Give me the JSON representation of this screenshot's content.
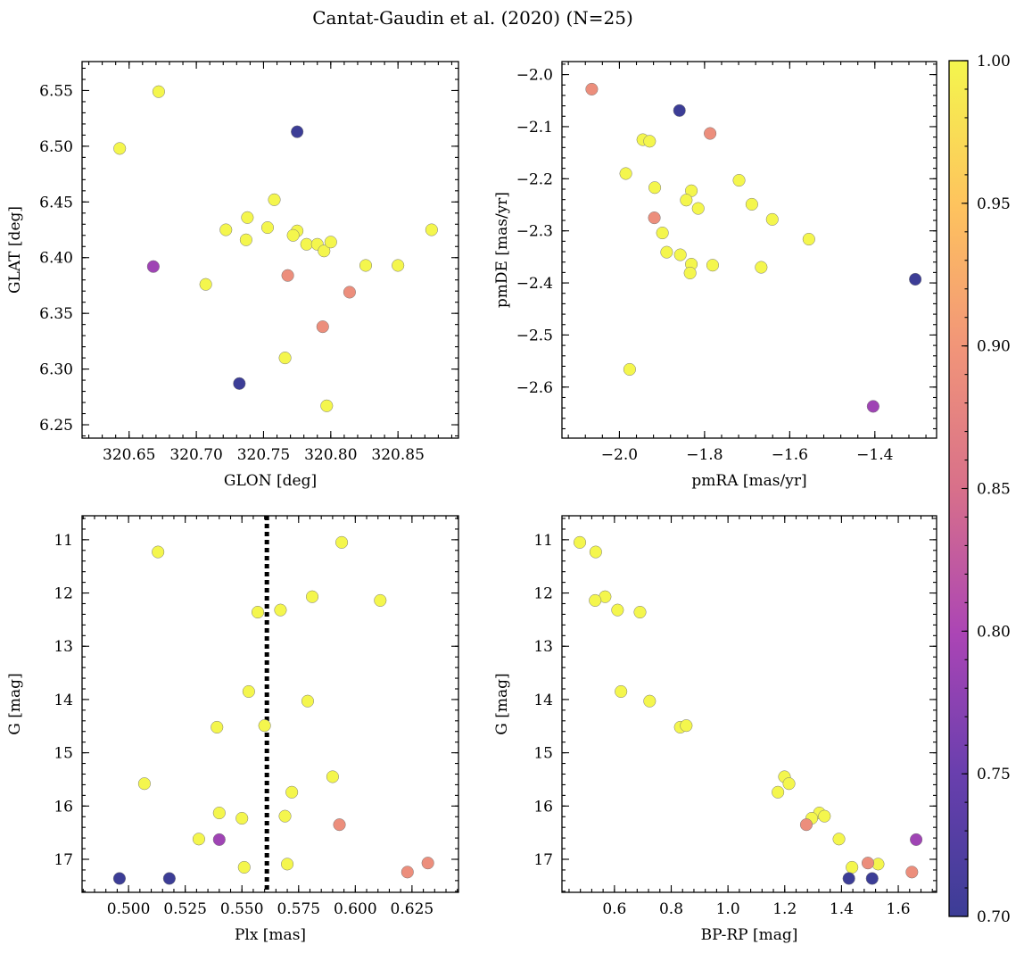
{
  "title": "Cantat-Gaudin et al. (2020) (N=25)",
  "colorbar": {
    "min": 0.7,
    "max": 1.0,
    "ticks": [
      0.7,
      0.75,
      0.8,
      0.85,
      0.9,
      0.95,
      1.0
    ],
    "tick_labels": [
      "0.70",
      "0.75",
      "0.80",
      "0.85",
      "0.90",
      "0.95",
      "1.00"
    ],
    "colormap": "plasma"
  },
  "chart_data": [
    {
      "type": "scatter",
      "name": "glon-glat",
      "xlabel": "GLON [deg]",
      "ylabel": "GLAT [deg]",
      "xlim": [
        320.615,
        320.895
      ],
      "ylim": [
        6.238,
        6.576
      ],
      "xticks": [
        320.65,
        320.7,
        320.75,
        320.8,
        320.85
      ],
      "xtick_labels": [
        "320.65",
        "320.70",
        "320.75",
        "320.80",
        "320.85"
      ],
      "yticks": [
        6.25,
        6.3,
        6.35,
        6.4,
        6.45,
        6.5,
        6.55
      ],
      "ytick_labels": [
        "6.25",
        "6.30",
        "6.35",
        "6.40",
        "6.45",
        "6.50",
        "6.55"
      ],
      "x": [
        320.672,
        320.643,
        320.775,
        320.758,
        320.738,
        320.722,
        320.753,
        320.737,
        320.775,
        320.772,
        320.782,
        320.79,
        320.795,
        320.8,
        320.826,
        320.85,
        320.875,
        320.668,
        320.707,
        320.768,
        320.814,
        320.794,
        320.732,
        320.766,
        320.797
      ],
      "y": [
        6.549,
        6.498,
        6.513,
        6.452,
        6.436,
        6.425,
        6.427,
        6.416,
        6.424,
        6.42,
        6.412,
        6.412,
        6.406,
        6.414,
        6.393,
        6.393,
        6.425,
        6.392,
        6.376,
        6.384,
        6.369,
        6.338,
        6.287,
        6.31,
        6.267
      ],
      "values": [
        1.0,
        1.0,
        0.7,
        1.0,
        1.0,
        1.0,
        1.0,
        1.0,
        1.0,
        1.0,
        1.0,
        1.0,
        1.0,
        1.0,
        1.0,
        1.0,
        1.0,
        0.79,
        1.0,
        0.89,
        0.89,
        0.89,
        0.7,
        1.0,
        1.0
      ]
    },
    {
      "type": "scatter",
      "name": "pmra-pmde",
      "xlabel": "pmRA [mas/yr]",
      "ylabel": "pmDE [mas/yr]",
      "xlim": [
        -2.135,
        -1.255
      ],
      "ylim": [
        -2.698,
        -1.975
      ],
      "xticks": [
        -2.0,
        -1.8,
        -1.6,
        -1.4
      ],
      "xtick_labels": [
        "−2.0",
        "−1.8",
        "−1.6",
        "−1.4"
      ],
      "yticks": [
        -2.6,
        -2.5,
        -2.4,
        -2.3,
        -2.2,
        -2.1,
        -2.0
      ],
      "ytick_labels": [
        "−2.6",
        "−2.5",
        "−2.4",
        "−2.3",
        "−2.2",
        "−2.1",
        "−2.0"
      ],
      "x": [
        -2.065,
        -1.859,
        -1.787,
        -1.945,
        -1.929,
        -1.985,
        -1.917,
        -1.719,
        -1.831,
        -1.843,
        -1.815,
        -1.689,
        -1.641,
        -1.918,
        -1.899,
        -1.555,
        -1.889,
        -1.857,
        -1.831,
        -1.834,
        -1.781,
        -1.667,
        -1.305,
        -1.976,
        -1.404
      ],
      "y": [
        -2.028,
        -2.069,
        -2.113,
        -2.125,
        -2.128,
        -2.19,
        -2.217,
        -2.203,
        -2.223,
        -2.241,
        -2.257,
        -2.249,
        -2.278,
        -2.275,
        -2.304,
        -2.316,
        -2.341,
        -2.346,
        -2.364,
        -2.381,
        -2.366,
        -2.37,
        -2.393,
        -2.566,
        -2.637
      ],
      "values": [
        0.89,
        0.7,
        0.89,
        1.0,
        1.0,
        1.0,
        1.0,
        1.0,
        1.0,
        1.0,
        1.0,
        1.0,
        1.0,
        0.89,
        1.0,
        1.0,
        1.0,
        1.0,
        1.0,
        1.0,
        1.0,
        1.0,
        0.7,
        1.0,
        0.79
      ]
    },
    {
      "type": "scatter",
      "name": "plx-g",
      "xlabel": "Plx [mas]",
      "ylabel": "G [mag]",
      "xlim": [
        0.4795,
        0.6455
      ],
      "ylim": [
        17.62,
        10.55
      ],
      "y_inverted": true,
      "vline": 0.561,
      "xticks": [
        0.5,
        0.525,
        0.55,
        0.575,
        0.6,
        0.625
      ],
      "xtick_labels": [
        "0.500",
        "0.525",
        "0.550",
        "0.575",
        "0.600",
        "0.625"
      ],
      "yticks": [
        11,
        12,
        13,
        14,
        15,
        16,
        17
      ],
      "ytick_labels": [
        "11",
        "12",
        "13",
        "14",
        "15",
        "16",
        "17"
      ],
      "x": [
        0.513,
        0.594,
        0.581,
        0.611,
        0.567,
        0.557,
        0.553,
        0.579,
        0.56,
        0.539,
        0.59,
        0.507,
        0.572,
        0.54,
        0.55,
        0.569,
        0.593,
        0.531,
        0.54,
        0.551,
        0.57,
        0.632,
        0.623,
        0.496,
        0.518
      ],
      "y": [
        11.23,
        11.05,
        12.07,
        12.14,
        12.32,
        12.36,
        13.85,
        14.03,
        14.49,
        14.52,
        15.45,
        15.58,
        15.74,
        16.13,
        16.23,
        16.19,
        16.35,
        16.62,
        16.63,
        17.15,
        17.09,
        17.07,
        17.24,
        17.36,
        17.36
      ],
      "values": [
        1.0,
        1.0,
        1.0,
        1.0,
        1.0,
        1.0,
        1.0,
        1.0,
        1.0,
        1.0,
        1.0,
        1.0,
        1.0,
        1.0,
        1.0,
        1.0,
        0.89,
        1.0,
        0.79,
        1.0,
        1.0,
        0.89,
        0.89,
        0.7,
        0.7
      ]
    },
    {
      "type": "scatter",
      "name": "bprp-g",
      "xlabel": "BP-RP [mag]",
      "ylabel": "G [mag]",
      "xlim": [
        0.415,
        1.735
      ],
      "ylim": [
        17.62,
        10.55
      ],
      "y_inverted": true,
      "xticks": [
        0.6,
        0.8,
        1.0,
        1.2,
        1.4,
        1.6
      ],
      "xtick_labels": [
        "0.6",
        "0.8",
        "1.0",
        "1.2",
        "1.4",
        "1.6"
      ],
      "yticks": [
        11,
        12,
        13,
        14,
        15,
        16,
        17
      ],
      "ytick_labels": [
        "11",
        "12",
        "13",
        "14",
        "15",
        "16",
        "17"
      ],
      "x": [
        0.478,
        0.534,
        0.567,
        0.532,
        0.611,
        0.69,
        0.623,
        0.724,
        0.832,
        0.853,
        1.199,
        1.215,
        1.176,
        1.322,
        1.295,
        1.34,
        1.276,
        1.391,
        1.663,
        1.437,
        1.529,
        1.493,
        1.648,
        1.426,
        1.508
      ],
      "y": [
        11.05,
        11.23,
        12.07,
        12.14,
        12.32,
        12.36,
        13.85,
        14.03,
        14.52,
        14.49,
        15.45,
        15.58,
        15.74,
        16.13,
        16.23,
        16.19,
        16.35,
        16.62,
        16.63,
        17.15,
        17.09,
        17.07,
        17.24,
        17.36,
        17.36
      ],
      "values": [
        1.0,
        1.0,
        1.0,
        1.0,
        1.0,
        1.0,
        1.0,
        1.0,
        1.0,
        1.0,
        1.0,
        1.0,
        1.0,
        1.0,
        1.0,
        1.0,
        0.89,
        1.0,
        0.79,
        1.0,
        1.0,
        0.89,
        0.89,
        0.7,
        0.7
      ]
    }
  ]
}
